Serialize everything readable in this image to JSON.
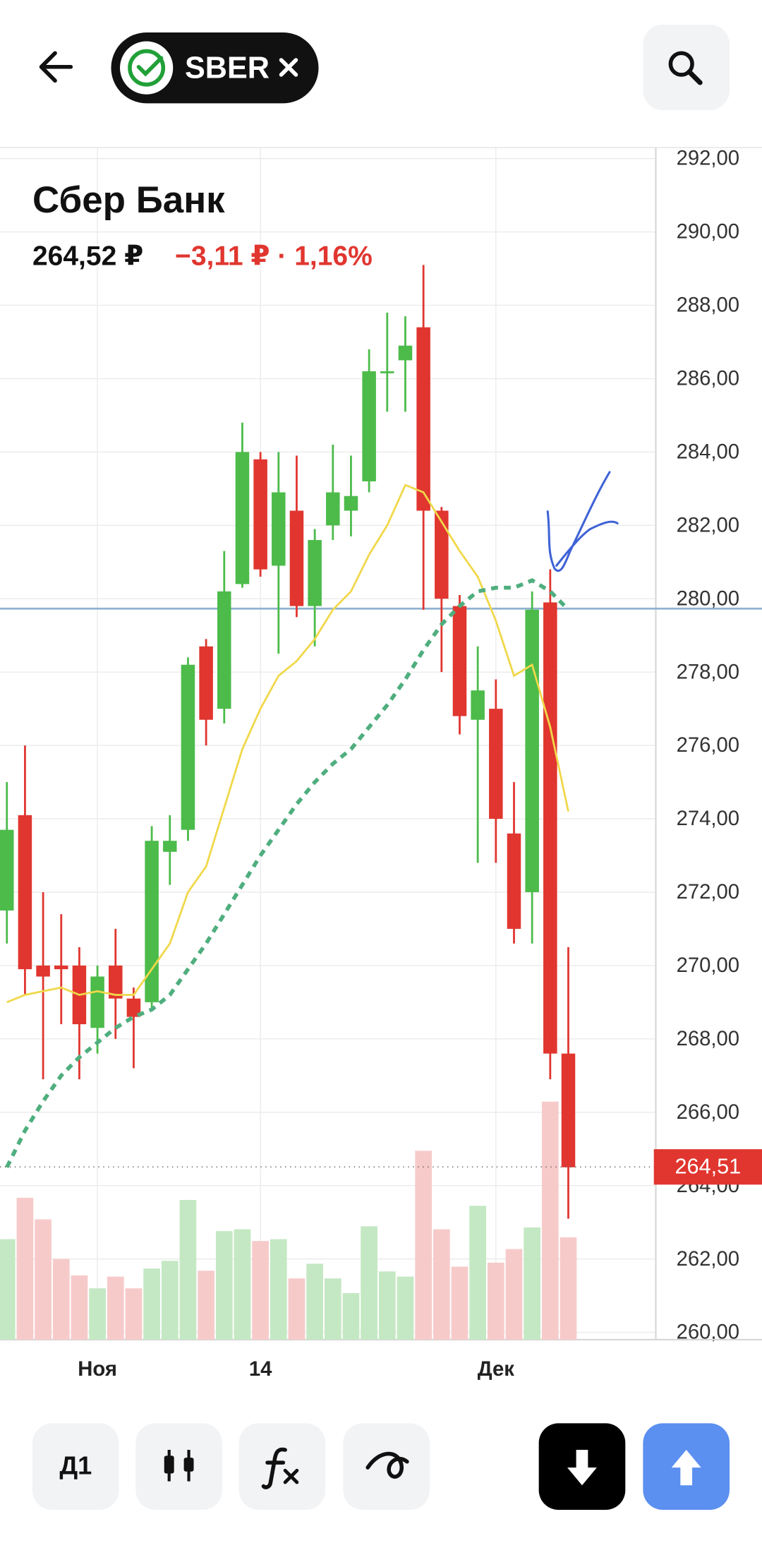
{
  "header": {
    "ticker": "SBER"
  },
  "chart_data": {
    "type": "candlestick",
    "title": "Сбер Банк",
    "price": "264,52 ₽",
    "change": "−3,11 ₽ · 1,16%",
    "categories": [
      null,
      null,
      null,
      null,
      null,
      "Ноя",
      null,
      null,
      null,
      null,
      null,
      null,
      null,
      null,
      "14",
      null,
      null,
      null,
      null,
      null,
      null,
      null,
      null,
      null,
      null,
      null,
      null,
      "Дек",
      null,
      null,
      null,
      null
    ],
    "open": [
      271.5,
      274.1,
      270.0,
      270.0,
      270.0,
      268.3,
      270.0,
      269.1,
      269.0,
      273.1,
      273.7,
      278.7,
      277.0,
      280.4,
      283.8,
      280.9,
      282.4,
      279.8,
      282.0,
      282.4,
      283.2,
      286.15,
      286.5,
      287.4,
      282.4,
      279.8,
      276.7,
      277.0,
      273.6,
      272.0,
      279.9,
      267.6
    ],
    "high": [
      275.0,
      276.0,
      272.0,
      271.4,
      270.5,
      270.0,
      271.0,
      269.4,
      273.8,
      274.1,
      278.4,
      278.9,
      281.3,
      284.8,
      284.0,
      284.0,
      283.9,
      281.9,
      284.2,
      283.9,
      286.8,
      287.8,
      287.7,
      289.1,
      282.5,
      280.1,
      278.7,
      277.8,
      275.0,
      280.2,
      280.8,
      270.5
    ],
    "low": [
      270.6,
      269.2,
      266.9,
      268.4,
      266.9,
      267.6,
      268.0,
      267.2,
      268.8,
      272.2,
      273.4,
      276.0,
      276.6,
      280.3,
      280.6,
      278.5,
      279.5,
      278.7,
      281.6,
      281.7,
      282.9,
      285.1,
      285.1,
      279.7,
      278.0,
      276.3,
      272.8,
      272.8,
      270.6,
      270.6,
      266.9,
      263.1
    ],
    "close": [
      273.7,
      269.9,
      269.7,
      269.9,
      268.4,
      269.7,
      269.1,
      268.6,
      273.4,
      273.4,
      278.2,
      276.7,
      280.2,
      284.0,
      280.8,
      282.9,
      279.8,
      281.6,
      282.9,
      282.8,
      286.2,
      286.2,
      286.9,
      282.4,
      280.0,
      276.8,
      277.5,
      274.0,
      271.0,
      279.7,
      267.6,
      264.5
    ],
    "volume": [
      262.54,
      263.67,
      263.08,
      262.0,
      261.55,
      261.2,
      261.52,
      261.2,
      261.74,
      261.95,
      263.61,
      261.68,
      262.76,
      262.81,
      262.49,
      262.54,
      261.47,
      261.87,
      261.47,
      261.07,
      262.89,
      261.66,
      261.52,
      264.95,
      262.81,
      261.79,
      263.45,
      261.9,
      262.27,
      262.86,
      266.29,
      262.59
    ],
    "moving_averages": [
      {
        "color": "#f0d84a",
        "dashed": false,
        "values": [
          269.0,
          269.2,
          269.3,
          269.4,
          269.2,
          269.3,
          269.2,
          269.2,
          269.9,
          270.6,
          272.0,
          272.7,
          274.3,
          275.9,
          277.0,
          277.9,
          278.3,
          278.9,
          279.7,
          280.2,
          281.2,
          282.0,
          283.1,
          282.9,
          282.1,
          281.3,
          280.6,
          279.4,
          277.9,
          278.2,
          276.5,
          274.2
        ]
      },
      {
        "color": "#4fae7e",
        "dashed": true,
        "values": [
          264.5,
          265.5,
          266.3,
          267.0,
          267.5,
          267.9,
          268.3,
          268.6,
          268.8,
          269.2,
          269.9,
          270.6,
          271.4,
          272.2,
          273.0,
          273.7,
          274.4,
          275.0,
          275.5,
          275.9,
          276.5,
          277.1,
          277.8,
          278.6,
          279.3,
          279.8,
          280.2,
          280.3,
          280.3,
          280.5,
          280.2,
          279.7
        ]
      }
    ],
    "up_color": "#4cbb4a",
    "down_color": "#e0362f",
    "volume_up_color": "#c4e8c3",
    "volume_down_color": "#f7caca",
    "level_line": 279.73,
    "level_color": "#8fb2d0",
    "last_price": {
      "value": 264.51,
      "label": "264,51"
    },
    "ylim": [
      259.8,
      292.3
    ],
    "yticks": [
      {
        "value": 260,
        "label": "260,00"
      },
      {
        "value": 262,
        "label": "262,00"
      },
      {
        "value": 264,
        "label": "264,00"
      },
      {
        "value": 266,
        "label": "266,00"
      },
      {
        "value": 268,
        "label": "268,00"
      },
      {
        "value": 270,
        "label": "270,00"
      },
      {
        "value": 272,
        "label": "272,00"
      },
      {
        "value": 274,
        "label": "274,00"
      },
      {
        "value": 276,
        "label": "276,00"
      },
      {
        "value": 278,
        "label": "278,00"
      },
      {
        "value": 280,
        "label": "280,00"
      },
      {
        "value": 282,
        "label": "282,00"
      },
      {
        "value": 284,
        "label": "284,00"
      },
      {
        "value": 286,
        "label": "286,00"
      },
      {
        "value": 288,
        "label": "288,00"
      },
      {
        "value": 290,
        "label": "290,00"
      },
      {
        "value": 292,
        "label": "292,00"
      }
    ],
    "grid": true
  },
  "toolbar": {
    "interval": "Д1"
  }
}
